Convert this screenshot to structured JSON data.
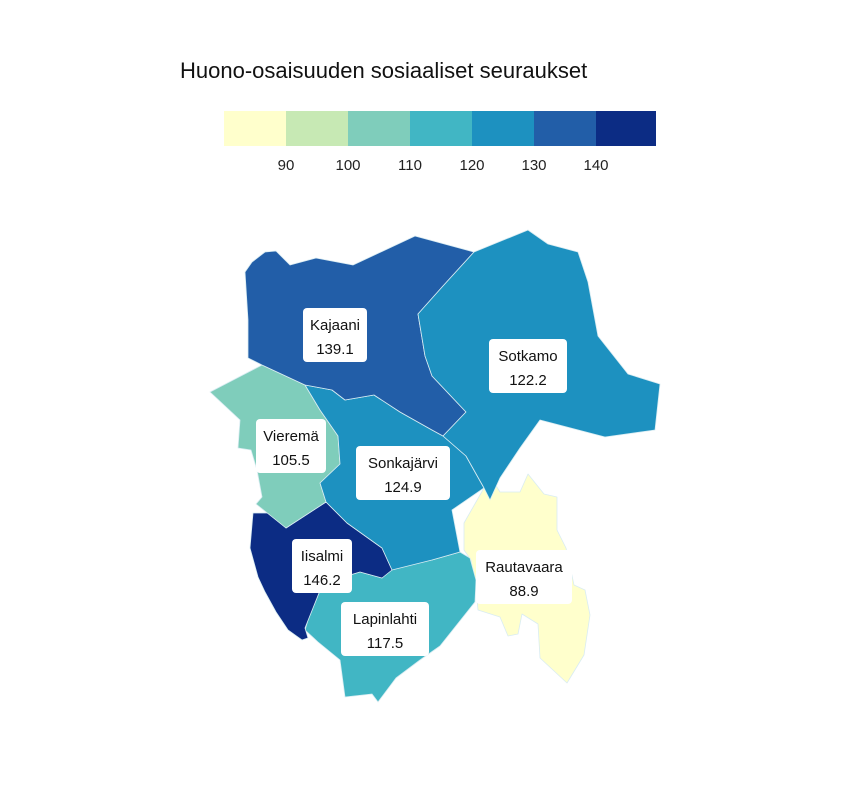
{
  "title": "Huono-osaisuuden sosiaaliset seuraukset",
  "legend": {
    "colors": [
      "#ffffcc",
      "#c7e9b4",
      "#7fcdbb",
      "#41b6c4",
      "#1d91c0",
      "#225ea8",
      "#0c2c84"
    ],
    "ticks": [
      "90",
      "100",
      "110",
      "120",
      "130",
      "140"
    ]
  },
  "regions": [
    {
      "name": "Kajaani",
      "value": "139.1",
      "color": "#225ea8"
    },
    {
      "name": "Sotkamo",
      "value": "122.2",
      "color": "#1d91c0"
    },
    {
      "name": "Vieremä",
      "value": "105.5",
      "color": "#7fcdbb"
    },
    {
      "name": "Sonkajärvi",
      "value": "124.9",
      "color": "#1d91c0"
    },
    {
      "name": "Iisalmi",
      "value": "146.2",
      "color": "#0c2c84"
    },
    {
      "name": "Rautavaara",
      "value": "88.9",
      "color": "#ffffcc"
    },
    {
      "name": "Lapinlahti",
      "value": "117.5",
      "color": "#41b6c4"
    }
  ]
}
